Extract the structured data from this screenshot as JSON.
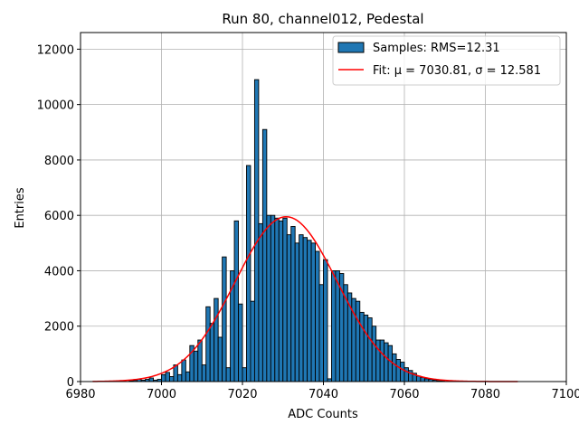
{
  "chart_data": {
    "type": "bar",
    "title": "Run 80, channel012, Pedestal",
    "xlabel": "ADC Counts",
    "ylabel": "Entries",
    "xlim": [
      6980,
      7100
    ],
    "ylim": [
      0,
      12600
    ],
    "xticks": [
      6980,
      7000,
      7020,
      7040,
      7060,
      7080,
      7100
    ],
    "yticks": [
      0,
      2000,
      4000,
      6000,
      8000,
      10000,
      12000
    ],
    "grid": true,
    "legend_position": "top-right",
    "histogram": {
      "name": "Samples: RMS=12.31",
      "color": "#1f77b4",
      "bin_width": 1,
      "bin_starts": [
        6992,
        6993,
        6994,
        6995,
        6996,
        6997,
        6998,
        6999,
        7000,
        7001,
        7002,
        7003,
        7004,
        7005,
        7006,
        7007,
        7008,
        7009,
        7010,
        7011,
        7012,
        7013,
        7014,
        7015,
        7016,
        7017,
        7018,
        7019,
        7020,
        7021,
        7022,
        7023,
        7024,
        7025,
        7026,
        7027,
        7028,
        7029,
        7030,
        7031,
        7032,
        7033,
        7034,
        7035,
        7036,
        7037,
        7038,
        7039,
        7040,
        7041,
        7042,
        7043,
        7044,
        7045,
        7046,
        7047,
        7048,
        7049,
        7050,
        7051,
        7052,
        7053,
        7054,
        7055,
        7056,
        7057,
        7058,
        7059,
        7060,
        7061,
        7062,
        7063,
        7064,
        7065,
        7066,
        7067,
        7068,
        7069
      ],
      "counts": [
        30,
        40,
        80,
        50,
        80,
        130,
        50,
        80,
        250,
        330,
        180,
        600,
        250,
        780,
        350,
        1300,
        1100,
        1500,
        600,
        2700,
        2100,
        3000,
        1600,
        4500,
        500,
        4000,
        5800,
        2800,
        500,
        7800,
        2900,
        10900,
        5700,
        9100,
        6000,
        6000,
        5900,
        5800,
        5900,
        5300,
        5600,
        5000,
        5300,
        5200,
        5100,
        5000,
        4700,
        3500,
        4400,
        100,
        4000,
        4000,
        3900,
        3500,
        3200,
        3000,
        2900,
        2500,
        2400,
        2300,
        2000,
        1500,
        1500,
        1400,
        1300,
        1000,
        800,
        700,
        500,
        400,
        300,
        200,
        150,
        100,
        80,
        50,
        30,
        20
      ]
    },
    "fit": {
      "name": "Fit: μ = 7030.81, σ = 12.581",
      "color": "#ff0000",
      "mu": 7030.81,
      "sigma": 12.581,
      "amplitude": 5950,
      "x_range": [
        6983,
        7088
      ]
    }
  }
}
